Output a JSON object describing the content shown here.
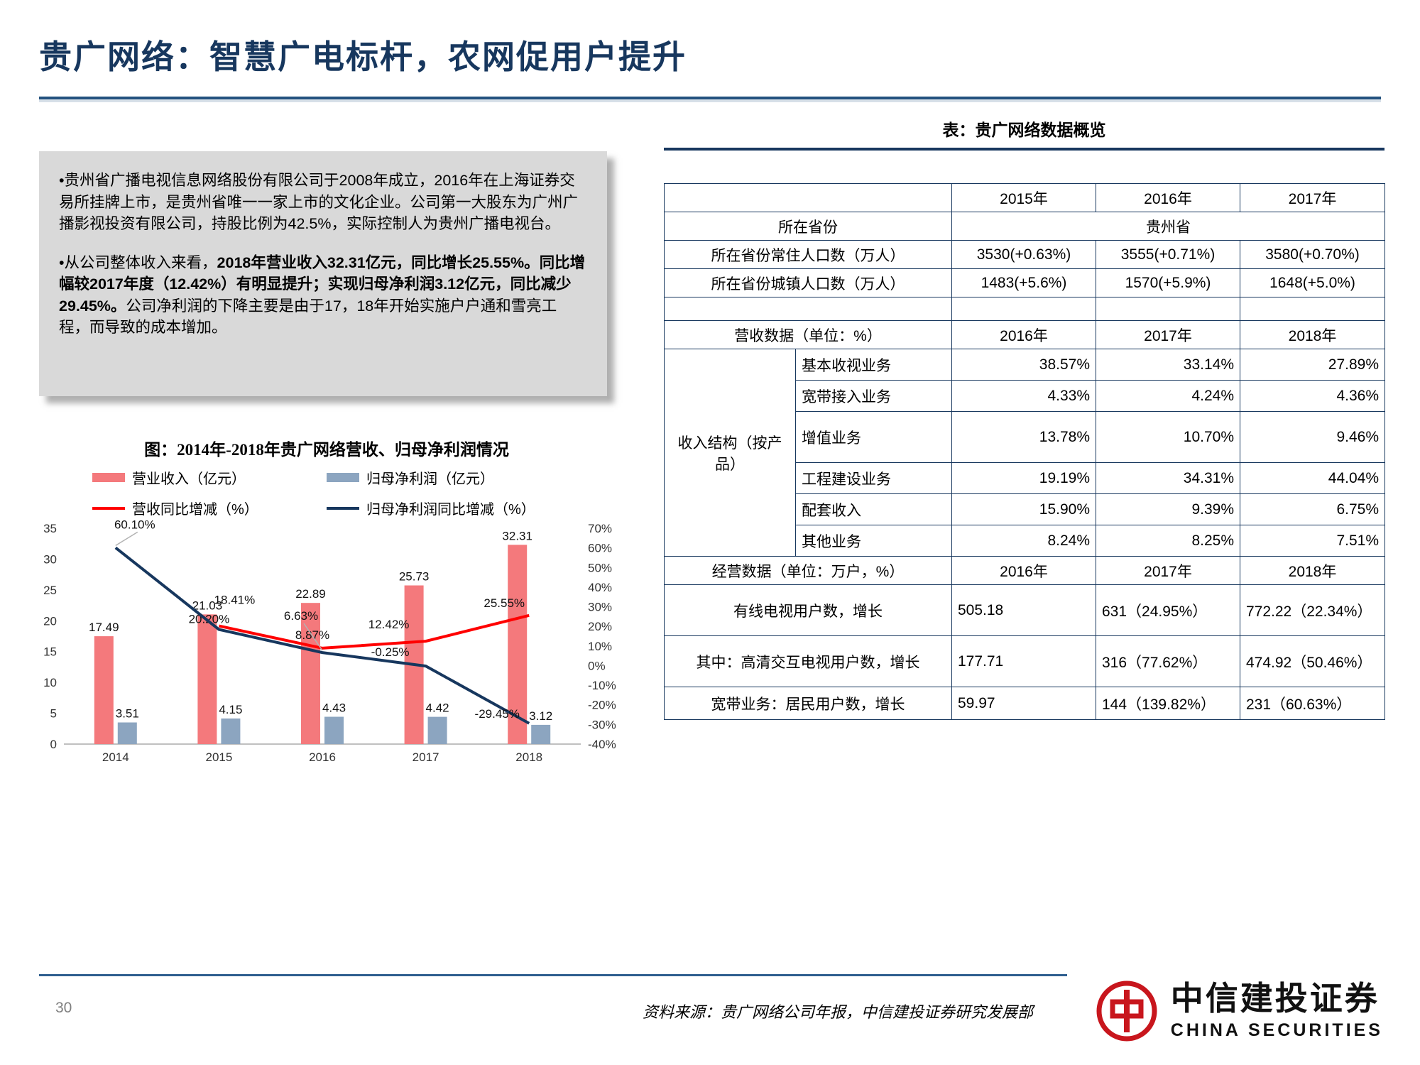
{
  "page": {
    "title": "贵广网络：智慧广电标杆，农网促用户提升",
    "page_number": "30",
    "source": "资料来源：贵广网络公司年报，中信建投证券研究发展部",
    "logo": {
      "cn": "中信建投证券",
      "en": "CHINA SECURITIES"
    }
  },
  "colors": {
    "title_navy": "#17375e",
    "table_border": "#17375e",
    "rule_blue": "#24527f",
    "box_gray": "#d9d9d9",
    "logo_red": "#c8161d"
  },
  "summary_box": {
    "bullet1": "•贵州省广播电视信息网络股份有限公司于2008年成立，2016年在上海证券交易所挂牌上市，是贵州省唯一一家上市的文化企业。公司第一大股东为广州广播影视投资有限公司，持股比例为42.5%，实际控制人为贵州广播电视台。",
    "bullet2_normal1": "•从公司整体收入来看，",
    "bullet2_bold": "2018年营业收入32.31亿元，同比增长25.55%。同比增幅较2017年度（12.42%）有明显提升；实现归母净利润3.12亿元，同比减少29.45%。",
    "bullet2_normal2": "公司净利润的下降主要是由于17，18年开始实施户户通和雪亮工程，而导致的成本增加。"
  },
  "figure": {
    "title": "图：2014年-2018年贵广网络营收、归母净利润情况",
    "legend": [
      "营业收入（亿元）",
      "归母净利润（亿元）",
      "营收同比增减（%）",
      "归母净利润同比增减（%）"
    ]
  },
  "chart_data": {
    "type": "combo",
    "categories": [
      "2014",
      "2015",
      "2016",
      "2017",
      "2018"
    ],
    "series": [
      {
        "name": "营业收入（亿元）",
        "type": "bar",
        "axis": "left",
        "color": "#f4797c",
        "values": [
          17.49,
          21.03,
          22.89,
          25.73,
          32.31
        ]
      },
      {
        "name": "归母净利润（亿元）",
        "type": "bar",
        "axis": "left",
        "color": "#8ca5c0",
        "values": [
          3.51,
          4.15,
          4.43,
          4.42,
          3.12
        ]
      },
      {
        "name": "营收同比增减（%）",
        "type": "line",
        "axis": "right",
        "color": "#ff0000",
        "values": [
          null,
          20.2,
          8.87,
          12.42,
          25.55
        ]
      },
      {
        "name": "归母净利润同比增减（%）",
        "type": "line",
        "axis": "right",
        "color": "#17375e",
        "values": [
          60.1,
          18.41,
          6.63,
          -0.25,
          -29.45
        ]
      }
    ],
    "left_axis": {
      "min": 0,
      "max": 35,
      "step": 5
    },
    "right_axis": {
      "min": -40,
      "max": 70,
      "step": 10,
      "suffix": "%"
    },
    "grid": false,
    "legend_position": "top"
  },
  "table": {
    "title": "表：贵广网络数据概览",
    "header_years": [
      "2015年",
      "2016年",
      "2017年"
    ],
    "province": {
      "label": "所在省份",
      "value": "贵州省"
    },
    "population_rows": [
      {
        "label": "所在省份常住人口数（万人）",
        "values": [
          "3530(+0.63%)",
          "3555(+0.71%)",
          "3580(+0.70%)"
        ]
      },
      {
        "label": "所在省份城镇人口数（万人）",
        "values": [
          "1483(+5.6%)",
          "1570(+5.9%)",
          "1648(+5.0%)"
        ]
      }
    ],
    "revenue_header": {
      "label": "营收数据（单位：%）",
      "years": [
        "2016年",
        "2017年",
        "2018年"
      ]
    },
    "income_structure": {
      "group_label": "收入结构（按产品）",
      "rows": [
        {
          "label": "基本收视业务",
          "values": [
            "38.57%",
            "33.14%",
            "27.89%"
          ]
        },
        {
          "label": "宽带接入业务",
          "values": [
            "4.33%",
            "4.24%",
            "4.36%"
          ]
        },
        {
          "label": "增值业务",
          "values": [
            "13.78%",
            "10.70%",
            "9.46%"
          ]
        },
        {
          "label": "工程建设业务",
          "values": [
            "19.19%",
            "34.31%",
            "44.04%"
          ]
        },
        {
          "label": "配套收入",
          "values": [
            "15.90%",
            "9.39%",
            "6.75%"
          ]
        },
        {
          "label": "其他业务",
          "values": [
            "8.24%",
            "8.25%",
            "7.51%"
          ]
        }
      ]
    },
    "operating_header": {
      "label": "经营数据（单位：万户，%）",
      "years": [
        "2016年",
        "2017年",
        "2018年"
      ]
    },
    "operating_rows": [
      {
        "label": "有线电视用户数，增长",
        "values": [
          "505.18",
          "631（24.95%）",
          "772.22（22.34%）"
        ]
      },
      {
        "label": "其中：高清交互电视用户数，增长",
        "values": [
          "177.71",
          "316（77.62%）",
          "474.92（50.46%）"
        ]
      },
      {
        "label": "宽带业务：居民用户数，增长",
        "values": [
          "59.97",
          "144（139.82%）",
          "231（60.63%）"
        ]
      }
    ]
  }
}
